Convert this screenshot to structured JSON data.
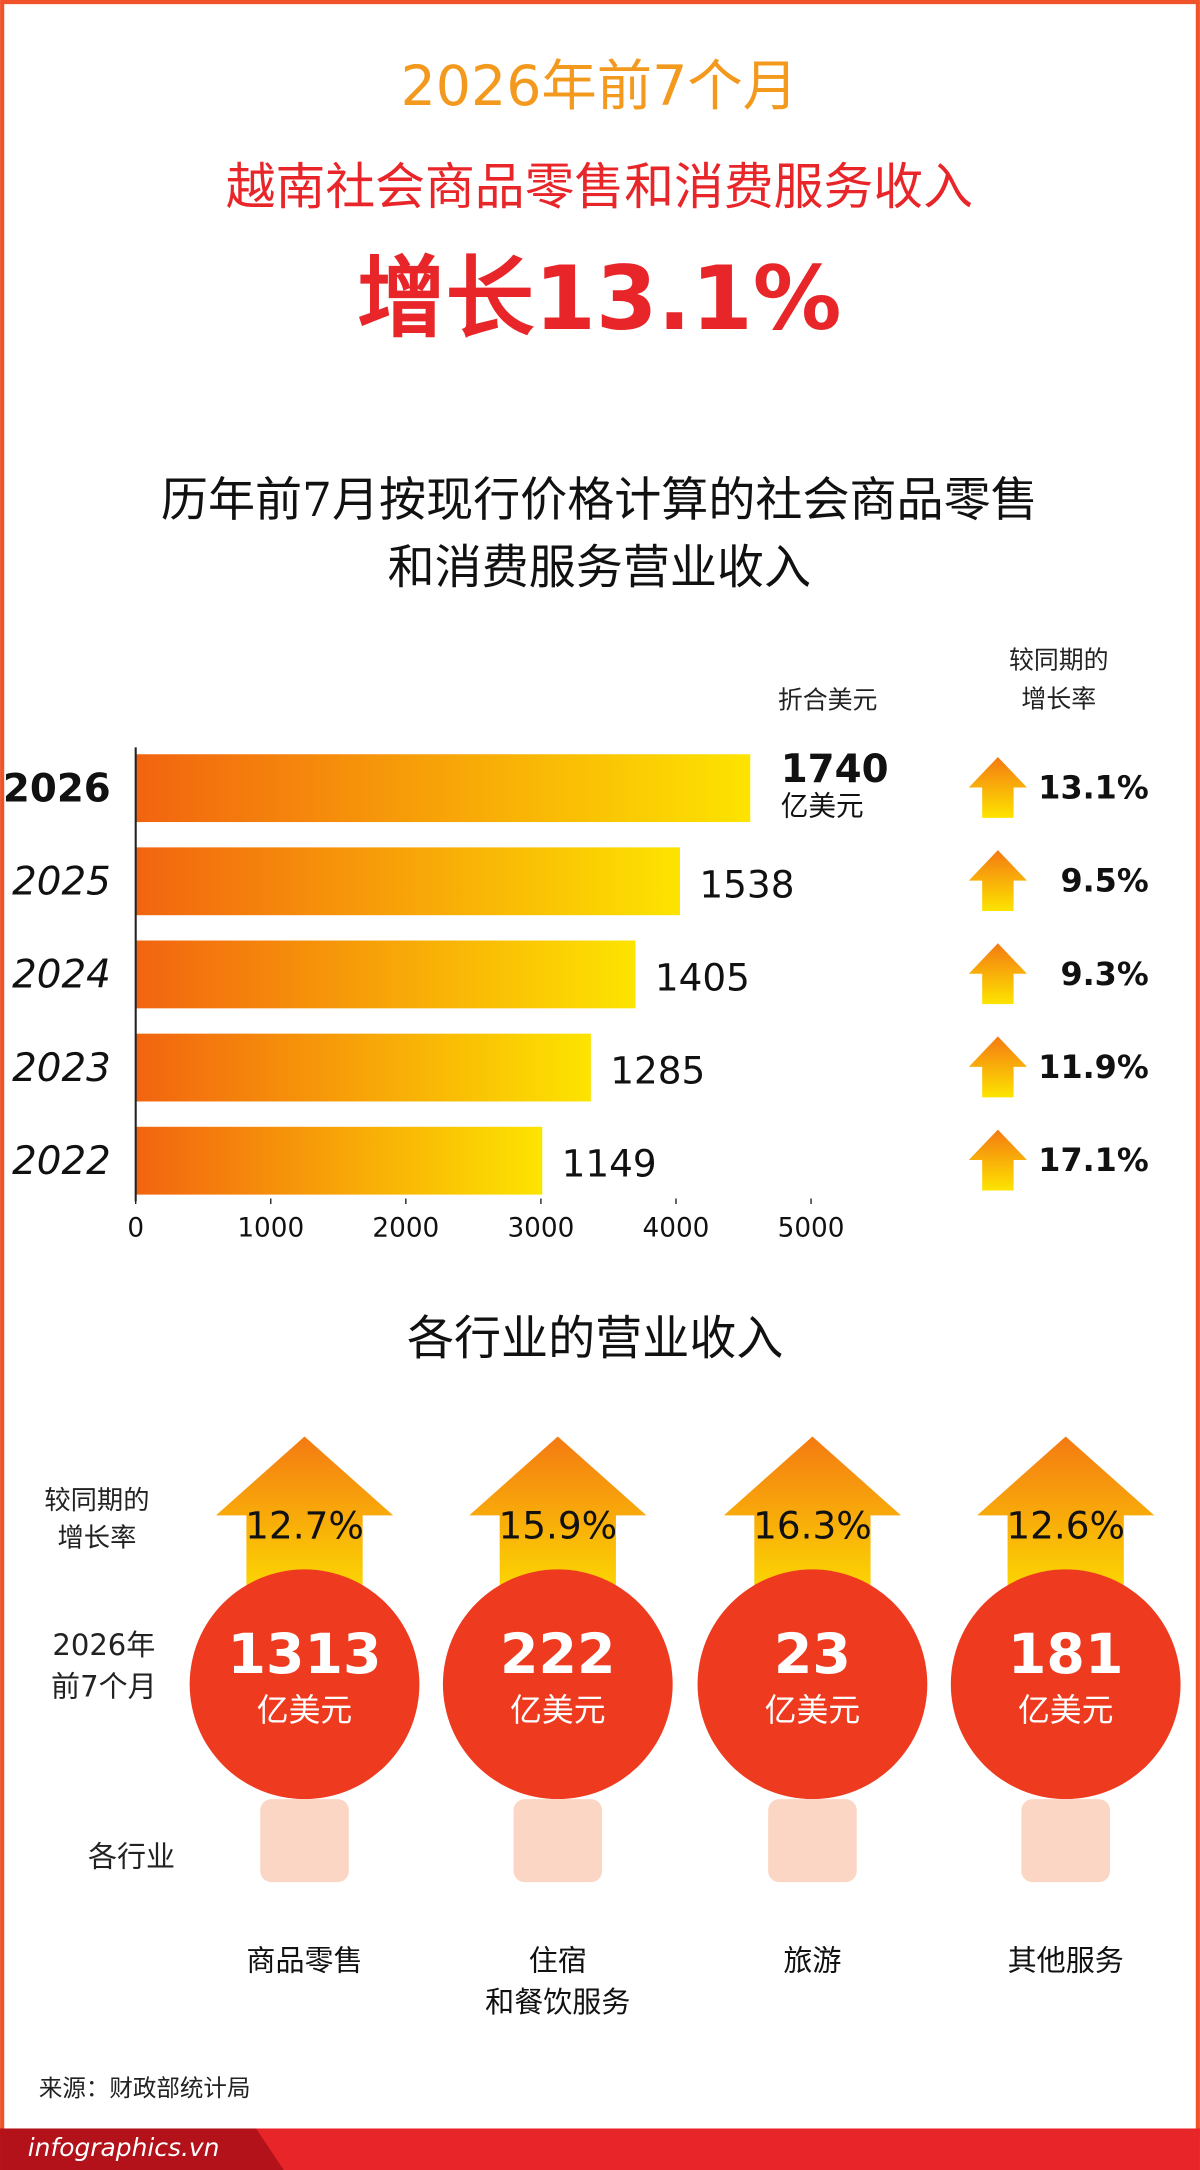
{
  "header": {
    "line1": "2026年前7个月",
    "line2": "越南社会商品零售和消费服务收入",
    "line3": "增长13.1%"
  },
  "chart_data": {
    "type": "bar",
    "orientation": "horizontal",
    "title": [
      "历年前7月按现行价格计算的社会商品零售",
      "和消费服务营业收入"
    ],
    "categories": [
      "2026",
      "2025",
      "2024",
      "2023",
      "2022"
    ],
    "values": [
      4550,
      4030,
      3700,
      3370,
      3010
    ],
    "xlim": [
      0,
      5000
    ],
    "xticks": [
      0,
      1000,
      2000,
      3000,
      4000,
      5000
    ],
    "usd_header": "折合美元",
    "usd_values": [
      1740,
      1538,
      1405,
      1285,
      1149
    ],
    "usd_unit": "亿美元",
    "growth_header": [
      "较同期的",
      "增长率"
    ],
    "growth_labels": [
      "13.1%",
      "9.5%",
      "9.3%",
      "11.9%",
      "17.1%"
    ]
  },
  "sectors": {
    "title": "各行业的营业收入",
    "row_growth": [
      "较同期的",
      "增长率"
    ],
    "row_period": [
      "2026年",
      "前7个月"
    ],
    "row_sector": "各行业",
    "items": [
      {
        "growth": "12.7%",
        "value": "1313",
        "unit": "亿美元",
        "name": [
          "商品零售"
        ]
      },
      {
        "growth": "15.9%",
        "value": "222",
        "unit": "亿美元",
        "name": [
          "住宿",
          "和餐饮服务"
        ]
      },
      {
        "growth": "16.3%",
        "value": "23",
        "unit": "亿美元",
        "name": [
          "旅游"
        ]
      },
      {
        "growth": "12.6%",
        "value": "181",
        "unit": "亿美元",
        "name": [
          "其他服务"
        ]
      }
    ]
  },
  "source": "来源：财政部统计局",
  "footer": "infographics.vn"
}
